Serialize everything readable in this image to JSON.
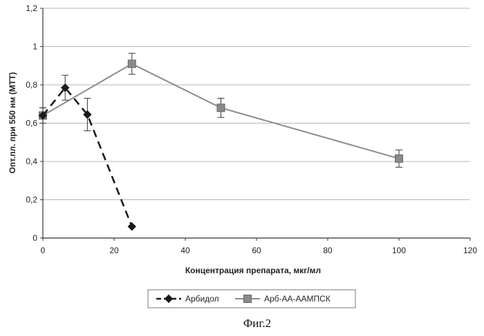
{
  "chart_data": {
    "type": "line",
    "title": "",
    "xlabel": "Концентрация препарата, мкг/мл",
    "ylabel": "Опт.пл. при 550 нм (МТТ)",
    "xlim": [
      0,
      120
    ],
    "ylim": [
      0,
      1.2
    ],
    "x_ticks": [
      "0",
      "20",
      "40",
      "60",
      "80",
      "100",
      "120"
    ],
    "y_ticks": [
      "0",
      "0,2",
      "0,4",
      "0,6",
      "0,8",
      "1",
      "1,2"
    ],
    "grid": "horizontal",
    "legend_position": "bottom",
    "series": [
      {
        "name": "Арбидол",
        "style": "dashed",
        "marker": "diamond",
        "color": "#1a1a1a",
        "points": [
          {
            "x": 0,
            "y": 0.64,
            "err": 0.04
          },
          {
            "x": 6.25,
            "y": 0.785,
            "err": 0.065
          },
          {
            "x": 12.5,
            "y": 0.645,
            "err": 0.085
          },
          {
            "x": 25,
            "y": 0.06,
            "err": 0
          }
        ]
      },
      {
        "name": "Арб-АА-ААМПСК",
        "style": "solid",
        "marker": "square",
        "color": "#8a8a8a",
        "points": [
          {
            "x": 0,
            "y": 0.64,
            "err": 0.04
          },
          {
            "x": 25,
            "y": 0.91,
            "err": 0.055
          },
          {
            "x": 50,
            "y": 0.68,
            "err": 0.05
          },
          {
            "x": 100,
            "y": 0.415,
            "err": 0.045
          }
        ]
      }
    ]
  },
  "caption": "Фиг.2"
}
